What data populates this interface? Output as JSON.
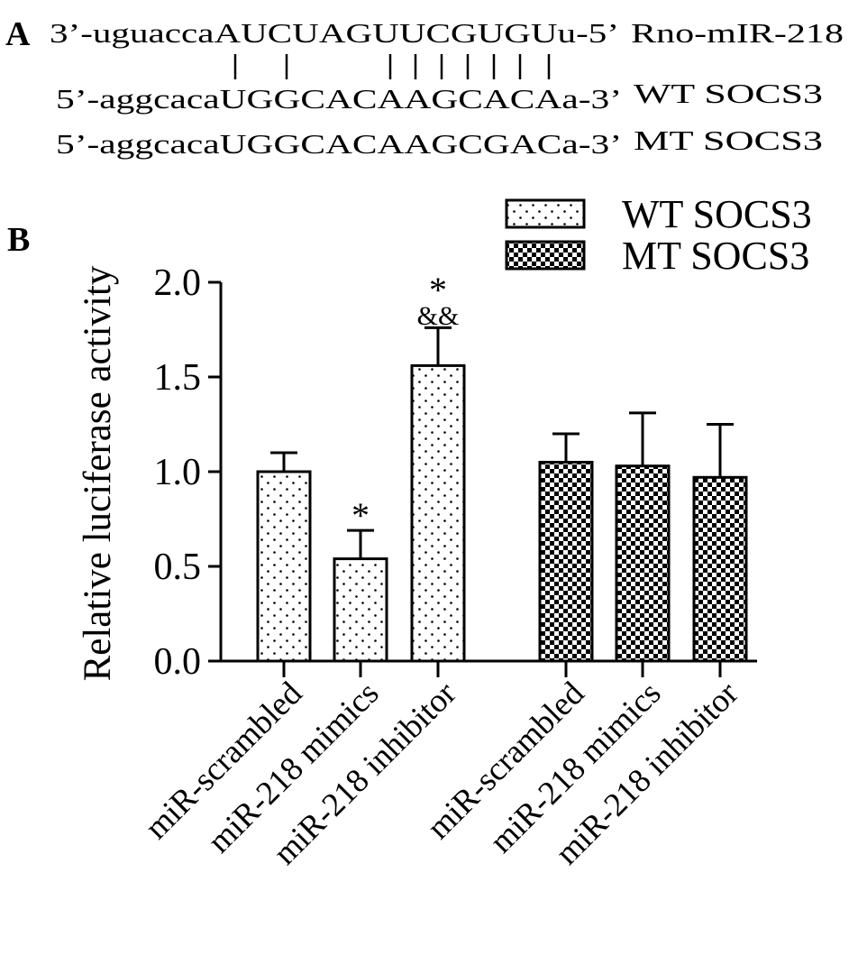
{
  "panel_a": {
    "label": "A",
    "lines": [
      {
        "sequence": "3’-uguaccaAUCUAGUUCGUGUu-5’",
        "name": "Rno-mIR-218"
      },
      {
        "sequence": "5’-aggcacaUGGCACAAGCACAa-3’",
        "name": "WT SOCS3"
      },
      {
        "sequence": "5’-aggcacaUGGCACAAGCGACa-3’",
        "name": "MT SOCS3"
      }
    ]
  },
  "chart_data": {
    "type": "bar",
    "panel_label": "B",
    "ylabel": "Relative luciferase activity",
    "categories": [
      "miR-scrambled",
      "miR-218 mimics",
      "miR-218 inhibitor",
      "miR-scrambled",
      "miR-218 mimics",
      "miR-218 inhibitor"
    ],
    "series": [
      {
        "name": "WT SOCS3",
        "pattern": "dots",
        "color": "#000000",
        "values": [
          1.0,
          0.54,
          1.56,
          null,
          null,
          null
        ],
        "errors": [
          0.1,
          0.15,
          0.2,
          null,
          null,
          null
        ]
      },
      {
        "name": "MT SOCS3",
        "pattern": "checker",
        "color": "#000000",
        "values": [
          null,
          null,
          null,
          1.05,
          1.03,
          0.97
        ],
        "errors": [
          null,
          null,
          null,
          0.15,
          0.28,
          0.28
        ]
      }
    ],
    "annotations": [
      "*",
      "*",
      "&&"
    ],
    "ylim": [
      0,
      2.0
    ],
    "yticks": [
      {
        "value": 0,
        "label": "0.0"
      },
      {
        "value": 0.5,
        "label": "0.5"
      },
      {
        "value": 1.0,
        "label": "1.0"
      },
      {
        "value": 1.5,
        "label": "1.5"
      },
      {
        "value": 2.0,
        "label": "2.0"
      }
    ],
    "legend": "upper right"
  }
}
